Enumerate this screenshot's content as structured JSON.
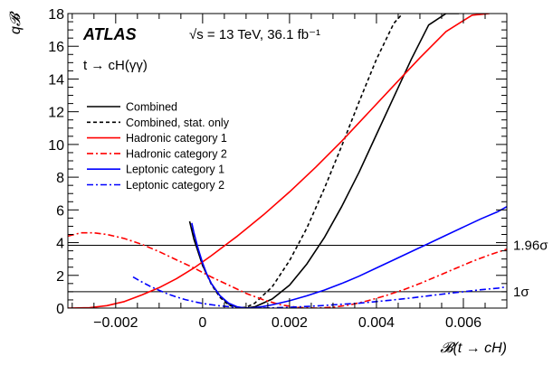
{
  "chart_data": {
    "type": "line",
    "atlas_label": "ATLAS",
    "energy_label": "√s = 13 TeV, 36.1 fb⁻¹",
    "process_label": "t → cH(γγ)",
    "xlabel": "𝓑(t → cH)",
    "ylabel": "q𝓑",
    "xlim": [
      -0.0031,
      0.007
    ],
    "ylim": [
      0,
      18
    ],
    "x_ticks": [
      -0.002,
      0,
      0.002,
      0.004,
      0.006
    ],
    "x_tick_labels": [
      "−0.002",
      "0",
      "0.002",
      "0.004",
      "0.006"
    ],
    "y_ticks": [
      0,
      2,
      4,
      6,
      8,
      10,
      12,
      14,
      16,
      18
    ],
    "y_tick_labels": [
      "0",
      "2",
      "4",
      "6",
      "8",
      "10",
      "12",
      "14",
      "16",
      "18"
    ],
    "reference_lines": [
      {
        "y": 3.84,
        "label": "1.96σ"
      },
      {
        "y": 1.0,
        "label": "1σ"
      }
    ],
    "legend_placement": "upper-left",
    "series": [
      {
        "name": "Combined",
        "color": "#000000",
        "dash": "solid",
        "x": [
          -0.00028,
          -0.0002,
          0,
          0.0002,
          0.0004,
          0.0006,
          0.0008,
          0.001,
          0.0012,
          0.0016,
          0.002,
          0.0024,
          0.0028,
          0.0032,
          0.0036,
          0.004,
          0.0044,
          0.0048,
          0.0052,
          0.0056,
          0.0059
        ],
        "y": [
          5.1,
          4.2,
          2.6,
          1.5,
          0.75,
          0.25,
          0.05,
          0.0,
          0.08,
          0.55,
          1.4,
          2.7,
          4.3,
          6.2,
          8.3,
          10.6,
          12.9,
          15.2,
          17.3,
          18.0,
          18.0
        ]
      },
      {
        "name": "Combined, stat. only",
        "color": "#000000",
        "dash": "dashed",
        "x": [
          -0.0003,
          -0.0002,
          0,
          0.0002,
          0.0004,
          0.0006,
          0.0008,
          0.001,
          0.0012,
          0.0016,
          0.002,
          0.0024,
          0.0028,
          0.0032,
          0.0036,
          0.004,
          0.0044,
          0.0046
        ],
        "y": [
          5.3,
          4.3,
          2.6,
          1.45,
          0.65,
          0.18,
          0.01,
          0.05,
          0.3,
          1.3,
          2.9,
          4.9,
          7.3,
          9.9,
          12.6,
          15.2,
          17.4,
          18.0
        ]
      },
      {
        "name": "Hadronic category 1",
        "color": "#ff0000",
        "dash": "solid",
        "x": [
          -0.0031,
          -0.0026,
          -0.0022,
          -0.0018,
          -0.0014,
          -0.001,
          -0.0006,
          -0.0002,
          0.0002,
          0.0008,
          0.0014,
          0.002,
          0.0026,
          0.0032,
          0.0038,
          0.0044,
          0.005,
          0.0056,
          0.0062,
          0.0066
        ],
        "y": [
          0.0,
          0.03,
          0.15,
          0.4,
          0.8,
          1.25,
          1.8,
          2.45,
          3.2,
          4.4,
          5.7,
          7.1,
          8.6,
          10.2,
          11.9,
          13.6,
          15.3,
          16.9,
          17.9,
          18.0
        ]
      },
      {
        "name": "Hadronic category 2",
        "color": "#ff0000",
        "dash": "dashdot",
        "x": [
          -0.0031,
          -0.0028,
          -0.0025,
          -0.0022,
          -0.0018,
          -0.0014,
          -0.001,
          -0.0006,
          -0.0002,
          0.0002,
          0.0006,
          0.001,
          0.0014,
          0.0018,
          0.0022,
          0.0026,
          0.003,
          0.0034,
          0.0038,
          0.0042,
          0.0046,
          0.005,
          0.0054,
          0.0058,
          0.0062,
          0.0066,
          0.007
        ],
        "y": [
          4.4,
          4.6,
          4.6,
          4.5,
          4.25,
          3.9,
          3.45,
          2.95,
          2.45,
          1.9,
          1.4,
          0.9,
          0.5,
          0.2,
          0.04,
          0.0,
          0.05,
          0.2,
          0.45,
          0.75,
          1.1,
          1.5,
          1.95,
          2.4,
          2.85,
          3.25,
          3.6
        ]
      },
      {
        "name": "Leptonic category 1",
        "color": "#0000ff",
        "dash": "solid",
        "x": [
          -0.00025,
          -0.0002,
          -0.0001,
          0,
          0.0001,
          0.0002,
          0.0004,
          0.0006,
          0.0008,
          0.001,
          0.0012,
          0.0014,
          0.0016,
          0.002,
          0.0024,
          0.0028,
          0.0032,
          0.0036,
          0.004,
          0.0044,
          0.0048,
          0.0052,
          0.0056,
          0.006,
          0.0064,
          0.0068,
          0.007
        ],
        "y": [
          5.2,
          4.6,
          3.6,
          2.75,
          2.05,
          1.5,
          0.75,
          0.3,
          0.07,
          0.0,
          0.02,
          0.1,
          0.2,
          0.45,
          0.75,
          1.1,
          1.5,
          1.95,
          2.45,
          2.95,
          3.45,
          3.95,
          4.45,
          4.95,
          5.45,
          5.9,
          6.2
        ]
      },
      {
        "name": "Leptonic category 2",
        "color": "#0000ff",
        "dash": "dashdot",
        "x": [
          -0.0016,
          -0.0014,
          -0.0012,
          -0.001,
          -0.0008,
          -0.0006,
          -0.0004,
          -0.0002,
          0,
          0.0004,
          0.0008,
          0.0012,
          0.0016,
          0.002,
          0.0024,
          0.0028,
          0.0032,
          0.0036,
          0.004,
          0.0044,
          0.0048,
          0.0052,
          0.0056,
          0.006,
          0.0064,
          0.0068,
          0.007
        ],
        "y": [
          1.9,
          1.6,
          1.32,
          1.08,
          0.86,
          0.68,
          0.52,
          0.39,
          0.28,
          0.13,
          0.04,
          0.0,
          0.01,
          0.05,
          0.1,
          0.16,
          0.23,
          0.3,
          0.4,
          0.5,
          0.62,
          0.75,
          0.88,
          1.0,
          1.12,
          1.22,
          1.3
        ]
      }
    ]
  }
}
